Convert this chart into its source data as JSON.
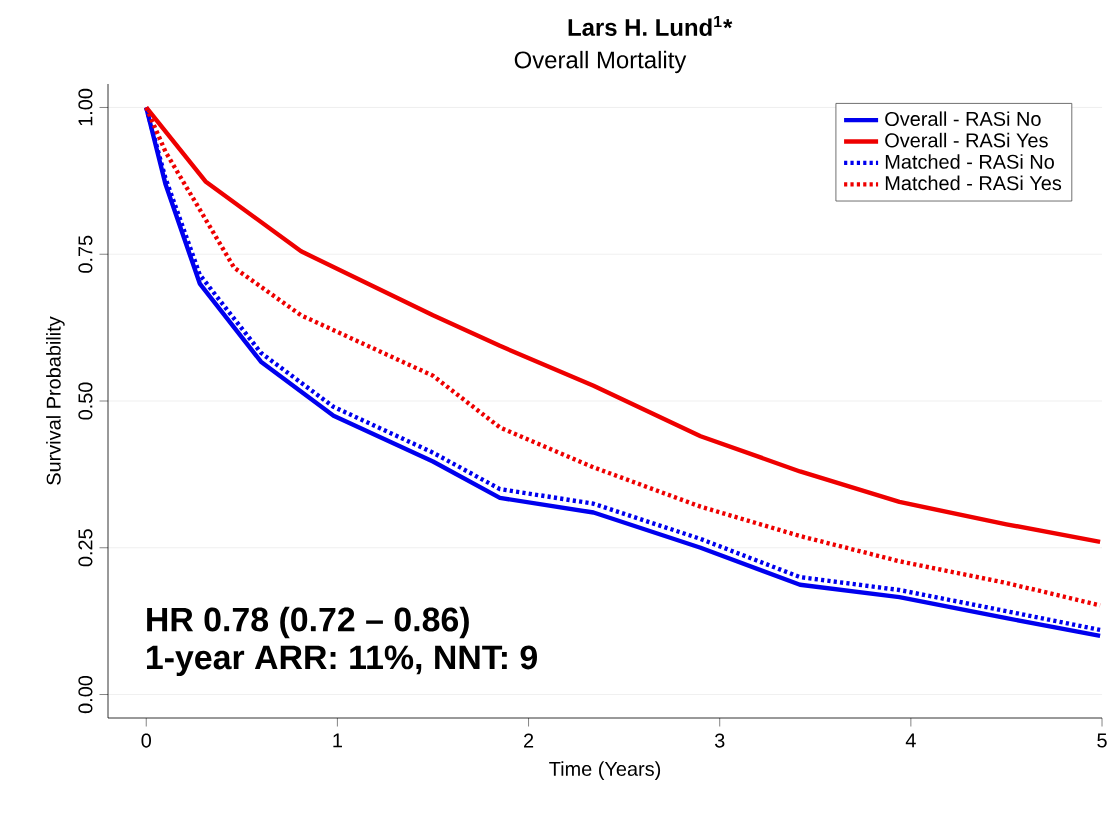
{
  "chart_data": {
    "type": "line",
    "title": "Overall Mortality",
    "xlabel": "Time (Years)",
    "ylabel": "Survival Probability",
    "xlim": [
      -0.2,
      5
    ],
    "ylim": [
      -0.04,
      1.04
    ],
    "xticks": [
      0,
      1,
      2,
      3,
      4,
      5
    ],
    "yticks": [
      {
        "value": 0,
        "label": "0.00"
      },
      {
        "value": 0.25,
        "label": "0.25"
      },
      {
        "value": 0.5,
        "label": "0.50"
      },
      {
        "value": 0.75,
        "label": "0.75"
      },
      {
        "value": 1,
        "label": "1.00"
      }
    ],
    "grid": "y",
    "legend": "top right",
    "series": [
      {
        "name": "Overall - RASi No",
        "color": "#0000ee",
        "line_style": "solid",
        "x": [
          0,
          0.1,
          0.28,
          0.6,
          0.98,
          1.5,
          1.85,
          2.34,
          2.9,
          3.42,
          3.94,
          4.5,
          4.99
        ],
        "values": [
          1,
          0.87,
          0.7,
          0.567,
          0.475,
          0.397,
          0.335,
          0.31,
          0.25,
          0.187,
          0.166,
          0.13,
          0.1
        ]
      },
      {
        "name": "Overall - RASi Yes",
        "color": "#ee0000",
        "line_style": "solid",
        "x": [
          0,
          0.31,
          0.81,
          1.5,
          1.85,
          2.34,
          2.9,
          3.42,
          3.94,
          4.5,
          4.99
        ],
        "values": [
          1,
          0.874,
          0.755,
          0.646,
          0.594,
          0.526,
          0.44,
          0.38,
          0.328,
          0.29,
          0.26
        ]
      },
      {
        "name": "Matched - RASi No",
        "color": "#0000ee",
        "line_style": "dotted",
        "x": [
          0,
          0.1,
          0.28,
          0.6,
          0.98,
          1.5,
          1.85,
          2.34,
          2.9,
          3.42,
          3.94,
          4.5,
          4.99
        ],
        "values": [
          1,
          0.88,
          0.715,
          0.582,
          0.49,
          0.412,
          0.35,
          0.325,
          0.265,
          0.2,
          0.178,
          0.142,
          0.11
        ]
      },
      {
        "name": "Matched - RASi Yes",
        "color": "#ee0000",
        "line_style": "dotted",
        "x": [
          0,
          0.1,
          0.46,
          0.81,
          1.5,
          1.85,
          2.34,
          2.9,
          3.42,
          3.94,
          4.5,
          4.99
        ],
        "values": [
          1,
          0.925,
          0.727,
          0.646,
          0.543,
          0.455,
          0.387,
          0.32,
          0.27,
          0.227,
          0.19,
          0.152
        ]
      }
    ],
    "annotations": [
      "HR 0.78 (0.72 – 0.86)",
      "1-year ARR: 11%, NNT: 9",
      "Lars H. Lund$^{1}$*"
    ]
  }
}
